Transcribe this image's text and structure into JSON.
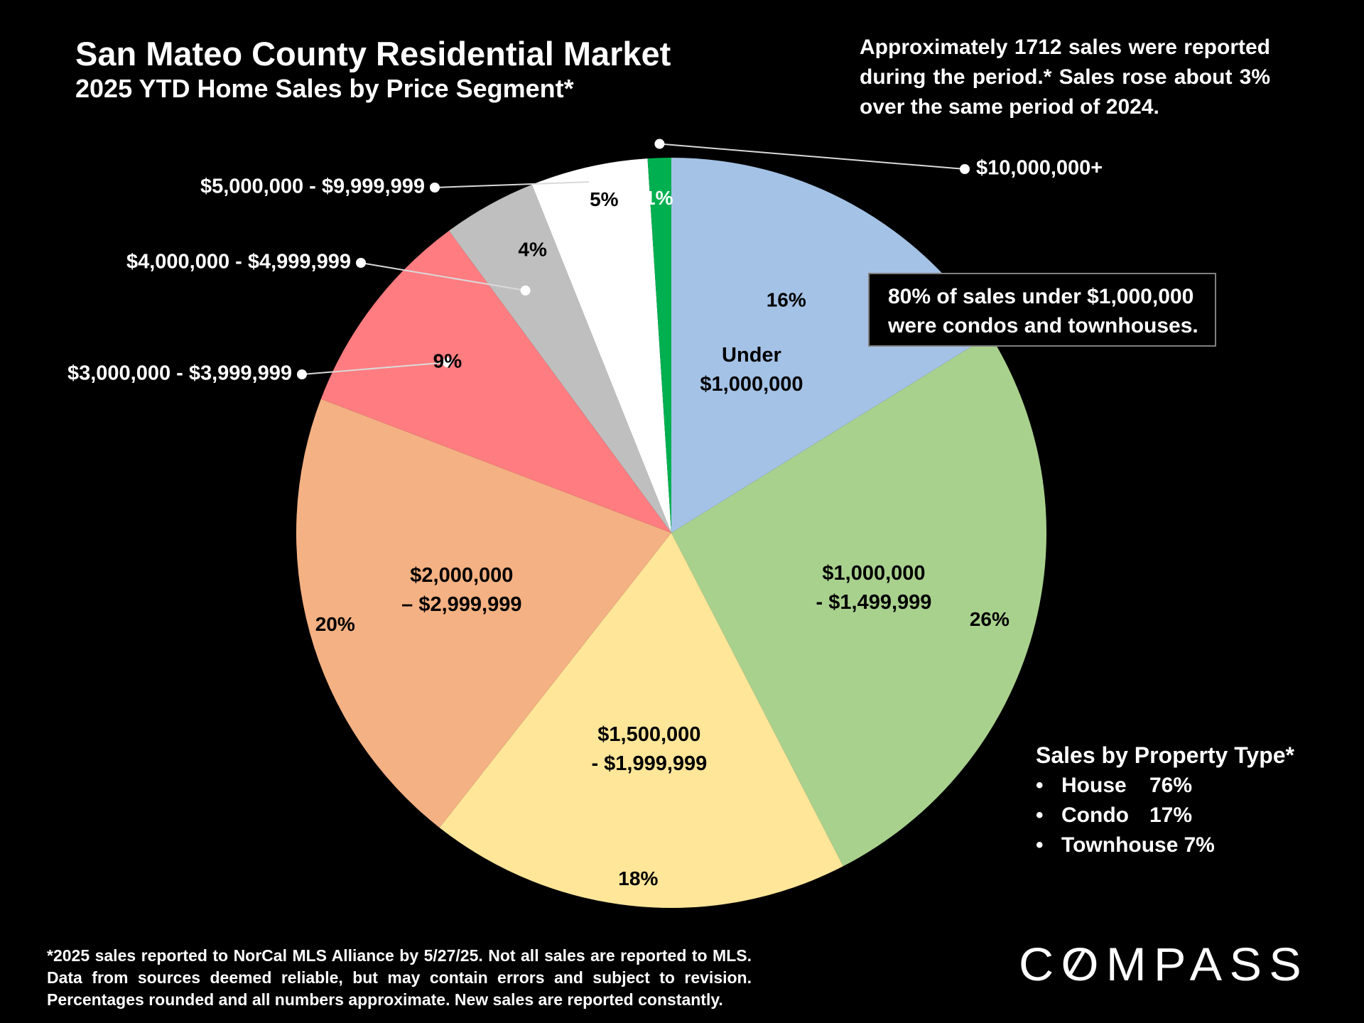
{
  "title": "San Mateo County Residential Market",
  "subtitle": "2025 YTD Home Sales by Price Segment*",
  "summary": "Approximately 1712 sales were reported during the period.* Sales rose about 3% over the same period of 2024.",
  "callout": {
    "line1": "80% of sales under $1,000,000",
    "line2": "were condos and townhouses."
  },
  "property_type": {
    "title": "Sales by Property Type*",
    "items": [
      {
        "name": "House",
        "value": "76%"
      },
      {
        "name": "Condo",
        "value": "17%"
      },
      {
        "name": "Townhouse",
        "value": "7%"
      }
    ]
  },
  "footnote": "*2025 sales reported to NorCal MLS Alliance by 5/27/25. Not all sales are reported to MLS. Data from sources deemed reliable, but may contain errors and subject to revision. Percentages rounded and all numbers approximate. New sales are reported constantly.",
  "logo": {
    "text": "COMPASS"
  },
  "chart_data": {
    "type": "pie",
    "title": "2025 YTD Home Sales by Price Segment*",
    "start_angle_deg": 0,
    "direction": "clockwise",
    "slices": [
      {
        "label": "Under $1,000,000",
        "label_lines": [
          "Under",
          "$1,000,000"
        ],
        "value": 16,
        "pct_label": "16%",
        "color": "#a4c2e6"
      },
      {
        "label": "$1,000,000 - $1,499,999",
        "label_lines": [
          "$1,000,000",
          "- $1,499,999"
        ],
        "value": 26,
        "pct_label": "26%",
        "color": "#a9d18e"
      },
      {
        "label": "$1,500,000 - $1,999,999",
        "label_lines": [
          "$1,500,000",
          "- $1,999,999"
        ],
        "value": 18,
        "pct_label": "18%",
        "color": "#ffe699"
      },
      {
        "label": "$2,000,000 – $2,999,999",
        "label_lines": [
          "$2,000,000",
          "– $2,999,999"
        ],
        "value": 20,
        "pct_label": "20%",
        "color": "#f4b183"
      },
      {
        "label": "$3,000,000 - $3,999,999",
        "value": 9,
        "pct_label": "9%",
        "color": "#ff7c80",
        "external": true
      },
      {
        "label": "$4,000,000 - $4,999,999",
        "value": 4,
        "pct_label": "4%",
        "color": "#bfbfbf",
        "external": true
      },
      {
        "label": "$5,000,000 - $9,999,999",
        "value": 5,
        "pct_label": "5%",
        "color": "#ffffff",
        "external": true
      },
      {
        "label": "$10,000,000+",
        "value": 1,
        "pct_label": "1%",
        "color": "#00b050",
        "external": true,
        "pct_text_color": "#ffffff"
      }
    ]
  }
}
